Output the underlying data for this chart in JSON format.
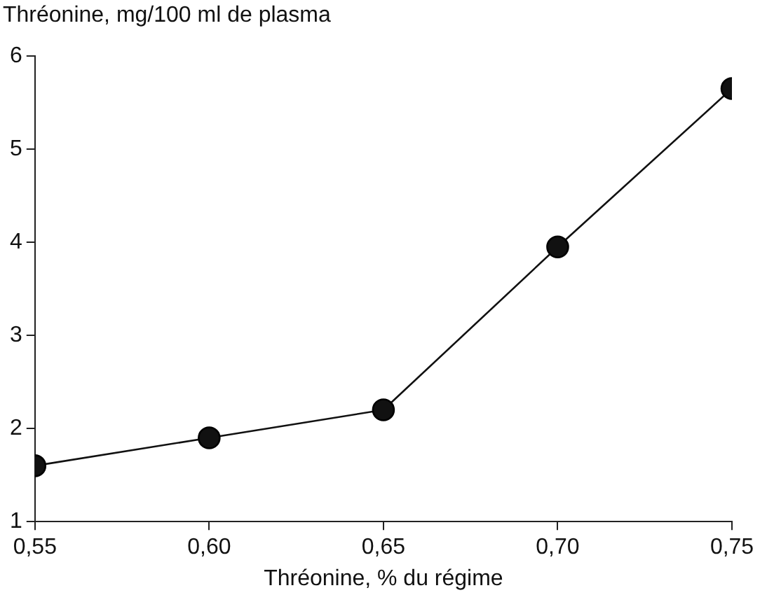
{
  "chart_data": {
    "type": "line",
    "xlabel": "Thréonine, % du régime",
    "ylabel": "Thréonine, mg/100 ml de plasma",
    "x": [
      0.55,
      0.6,
      0.65,
      0.7,
      0.75
    ],
    "series": [
      {
        "color": "#111111",
        "values": [
          1.6,
          1.9,
          2.2,
          3.95,
          5.65
        ]
      }
    ],
    "xlim": [
      0.55,
      0.75
    ],
    "xticks": [
      {
        "value": 0.55,
        "label": "0,55"
      },
      {
        "value": 0.6,
        "label": "0,60"
      },
      {
        "value": 0.65,
        "label": "0,65"
      },
      {
        "value": 0.7,
        "label": "0,70"
      },
      {
        "value": 0.75,
        "label": "0,75"
      }
    ],
    "ylim": [
      1,
      6
    ],
    "yticks": [
      1,
      2,
      3,
      4,
      5,
      6
    ],
    "grid": false,
    "legend": false,
    "marker": "circle",
    "line_style": "solid"
  }
}
